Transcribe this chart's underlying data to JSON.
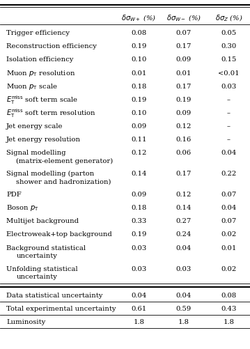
{
  "col_headers": [
    "$\\delta\\sigma_{W+}$ (%)",
    "$\\delta\\sigma_{W-}$ (%)",
    "$\\delta\\sigma_Z$ (%)"
  ],
  "rows": [
    {
      "label": "Trigger efficiency",
      "line2": "",
      "vals": [
        "0.08",
        "0.07",
        "0.05"
      ]
    },
    {
      "label": "Reconstruction efficiency",
      "line2": "",
      "vals": [
        "0.19",
        "0.17",
        "0.30"
      ]
    },
    {
      "label": "Isolation efficiency",
      "line2": "",
      "vals": [
        "0.10",
        "0.09",
        "0.15"
      ]
    },
    {
      "label": "Muon $p_{\\rm T}$ resolution",
      "line2": "",
      "vals": [
        "0.01",
        "0.01",
        "<0.01"
      ]
    },
    {
      "label": "Muon $p_{\\rm T}$ scale",
      "line2": "",
      "vals": [
        "0.18",
        "0.17",
        "0.03"
      ]
    },
    {
      "label": "$E_{\\rm T}^{\\rm miss}$ soft term scale",
      "line2": "",
      "vals": [
        "0.19",
        "0.19",
        "–"
      ]
    },
    {
      "label": "$E_{\\rm T}^{\\rm miss}$ soft term resolution",
      "line2": "",
      "vals": [
        "0.10",
        "0.09",
        "–"
      ]
    },
    {
      "label": "Jet energy scale",
      "line2": "",
      "vals": [
        "0.09",
        "0.12",
        "–"
      ]
    },
    {
      "label": "Jet energy resolution",
      "line2": "",
      "vals": [
        "0.11",
        "0.16",
        "–"
      ]
    },
    {
      "label": "Signal modelling",
      "line2": "(matrix-element generator)",
      "vals": [
        "0.12",
        "0.06",
        "0.04"
      ]
    },
    {
      "label": "Signal modelling (parton",
      "line2": "shower and hadronization)",
      "vals": [
        "0.14",
        "0.17",
        "0.22"
      ]
    },
    {
      "label": "PDF",
      "line2": "",
      "vals": [
        "0.09",
        "0.12",
        "0.07"
      ]
    },
    {
      "label": "Boson $p_{\\rm T}$",
      "line2": "",
      "vals": [
        "0.18",
        "0.14",
        "0.04"
      ]
    },
    {
      "label": "Multijet background",
      "line2": "",
      "vals": [
        "0.33",
        "0.27",
        "0.07"
      ]
    },
    {
      "label": "Electroweak+top background",
      "line2": "",
      "vals": [
        "0.19",
        "0.24",
        "0.02"
      ]
    },
    {
      "label": "Background statistical",
      "line2": "uncertainty",
      "vals": [
        "0.03",
        "0.04",
        "0.01"
      ]
    },
    {
      "label": "Unfolding statistical",
      "line2": "uncertainty",
      "vals": [
        "0.03",
        "0.03",
        "0.02"
      ]
    }
  ],
  "sep_rows": [
    {
      "label": "Data statistical uncertainty",
      "vals": [
        "0.04",
        "0.04",
        "0.08"
      ]
    },
    {
      "label": "Total experimental uncertainty",
      "vals": [
        "0.61",
        "0.59",
        "0.43"
      ]
    },
    {
      "label": "Luminosity",
      "vals": [
        "1.8",
        "1.8",
        "1.8"
      ]
    }
  ],
  "figsize": [
    3.59,
    5.02
  ],
  "dpi": 100,
  "font_size": 7.2
}
